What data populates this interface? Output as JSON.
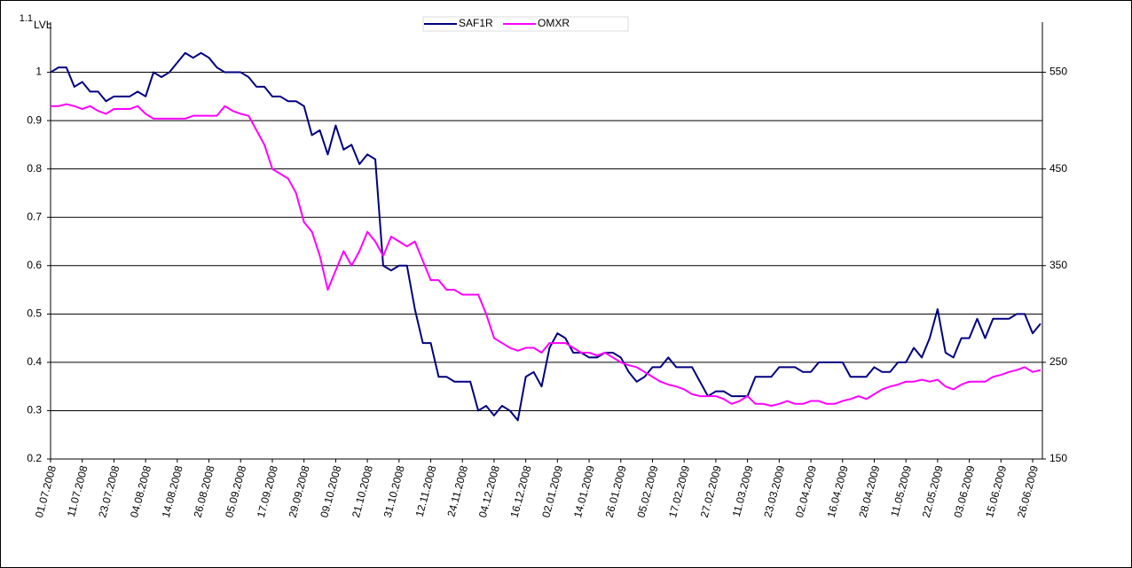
{
  "chart_data": {
    "type": "line",
    "y_label": "LVL",
    "categories": [
      "01.07.2008",
      null,
      null,
      null,
      "11.07.2008",
      null,
      null,
      null,
      "23.07.2008",
      null,
      null,
      null,
      "04.08.2008",
      null,
      null,
      null,
      "14.08.2008",
      null,
      null,
      null,
      "26.08.2008",
      null,
      null,
      null,
      "05.09.2008",
      null,
      null,
      null,
      "17.09.2008",
      null,
      null,
      null,
      "29.09.2008",
      null,
      null,
      null,
      "09.10.2008",
      null,
      null,
      null,
      "21.10.2008",
      null,
      null,
      null,
      "31.10.2008",
      null,
      null,
      null,
      "12.11.2008",
      null,
      null,
      null,
      "24.11.2008",
      null,
      null,
      null,
      "04.12.2008",
      null,
      null,
      null,
      "16.12.2008",
      null,
      null,
      null,
      "02.01.2009",
      null,
      null,
      null,
      "14.01.2009",
      null,
      null,
      null,
      "26.01.2009",
      null,
      null,
      null,
      "05.02.2009",
      null,
      null,
      null,
      "17.02.2009",
      null,
      null,
      null,
      "27.02.2009",
      null,
      null,
      null,
      "11.03.2009",
      null,
      null,
      null,
      "23.03.2009",
      null,
      null,
      null,
      "02.04.2009",
      null,
      null,
      null,
      "16.04.2009",
      null,
      null,
      null,
      "28.04.2009",
      null,
      null,
      null,
      "11.05.2009",
      null,
      null,
      null,
      "22.05.2009",
      null,
      null,
      null,
      "03.06.2009",
      null,
      null,
      null,
      "15.06.2009",
      null,
      null,
      null,
      "26.06.2009",
      null
    ],
    "series": [
      {
        "name": "SAF1R",
        "color": "#000080",
        "values": [
          1.0,
          1.01,
          1.01,
          0.97,
          0.98,
          0.96,
          0.96,
          0.94,
          0.95,
          0.95,
          0.95,
          0.96,
          0.95,
          1.0,
          0.99,
          1.0,
          1.02,
          1.04,
          1.03,
          1.04,
          1.03,
          1.01,
          1.0,
          1.0,
          1.0,
          0.99,
          0.97,
          0.97,
          0.95,
          0.95,
          0.94,
          0.94,
          0.93,
          0.87,
          0.88,
          0.83,
          0.89,
          0.84,
          0.85,
          0.81,
          0.83,
          0.82,
          0.6,
          0.59,
          0.6,
          0.6,
          0.51,
          0.44,
          0.44,
          0.37,
          0.37,
          0.36,
          0.36,
          0.36,
          0.3,
          0.31,
          0.29,
          0.31,
          0.3,
          0.28,
          0.37,
          0.38,
          0.35,
          0.43,
          0.46,
          0.45,
          0.42,
          0.42,
          0.41,
          0.41,
          0.42,
          0.42,
          0.41,
          0.38,
          0.36,
          0.37,
          0.39,
          0.39,
          0.41,
          0.39,
          0.39,
          0.39,
          0.36,
          0.33,
          0.34,
          0.34,
          0.33,
          0.33,
          0.33,
          0.37,
          0.37,
          0.37,
          0.39,
          0.39,
          0.39,
          0.38,
          0.38,
          0.4,
          0.4,
          0.4,
          0.4,
          0.37,
          0.37,
          0.37,
          0.39,
          0.38,
          0.38,
          0.4,
          0.4,
          0.43,
          0.41,
          0.45,
          0.51,
          0.42,
          0.41,
          0.45,
          0.45,
          0.49,
          0.45,
          0.49,
          0.49,
          0.49,
          0.5,
          0.5,
          0.46,
          0.48
        ]
      },
      {
        "name": "OMXR",
        "color": "#ff00ff",
        "axis": "y2",
        "values": [
          515,
          515,
          517,
          515,
          512,
          515,
          510,
          507,
          512,
          512,
          512,
          515,
          507,
          502,
          502,
          502,
          502,
          502,
          505,
          505,
          505,
          505,
          515,
          510,
          507,
          505,
          490,
          475,
          450,
          445,
          440,
          425,
          395,
          385,
          360,
          325,
          345,
          365,
          350,
          365,
          385,
          375,
          360,
          380,
          375,
          370,
          375,
          355,
          335,
          335,
          325,
          325,
          320,
          320,
          320,
          300,
          275,
          270,
          265,
          262,
          265,
          265,
          260,
          270,
          270,
          270,
          265,
          260,
          260,
          257,
          260,
          255,
          250,
          247,
          245,
          240,
          235,
          230,
          227,
          225,
          222,
          217,
          215,
          215,
          215,
          212,
          207,
          210,
          215,
          207,
          207,
          205,
          207,
          210,
          207,
          207,
          210,
          210,
          207,
          207,
          210,
          212,
          215,
          212,
          217,
          222,
          225,
          227,
          230,
          230,
          232,
          230,
          232,
          225,
          222,
          227,
          230,
          230,
          230,
          235,
          237,
          240,
          242,
          245,
          240,
          242
        ]
      }
    ],
    "ylim": [
      0.2,
      1.1
    ],
    "yticks": [
      0.2,
      0.3,
      0.4,
      0.5,
      0.6,
      0.7,
      0.8,
      0.9,
      1,
      1.1
    ],
    "y2lim": [
      150,
      600
    ],
    "y2ticks": [
      150,
      250,
      350,
      450,
      550
    ],
    "grid": true,
    "legend": "top"
  }
}
